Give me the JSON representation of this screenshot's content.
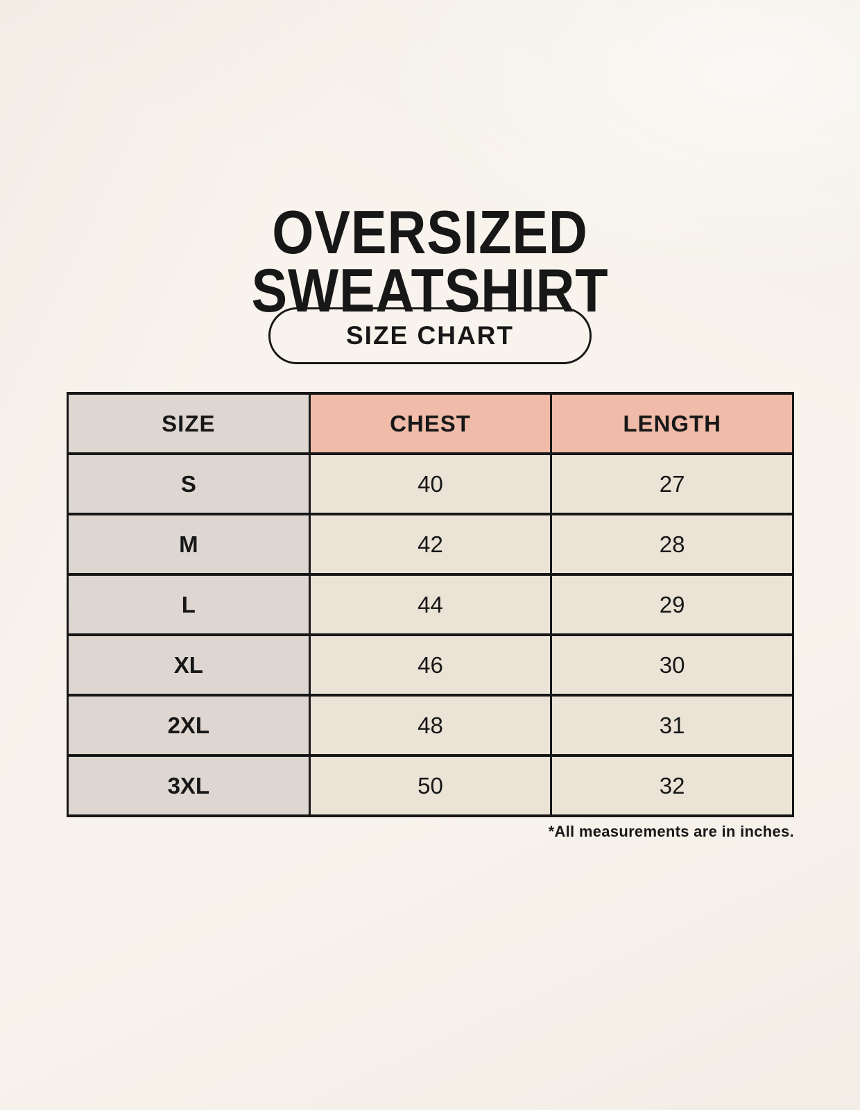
{
  "page": {
    "title_line1": "OVERSIZED",
    "title_line2": "SWEATSHIRT",
    "badge_label": "SIZE CHART",
    "footnote": "*All measurements are in inches."
  },
  "table": {
    "headers": [
      "SIZE",
      "CHEST",
      "LENGTH"
    ],
    "rows": [
      {
        "size": "S",
        "chest": "40",
        "length": "27"
      },
      {
        "size": "M",
        "chest": "42",
        "length": "28"
      },
      {
        "size": "L",
        "chest": "44",
        "length": "29"
      },
      {
        "size": "XL",
        "chest": "46",
        "length": "30"
      },
      {
        "size": "2XL",
        "chest": "48",
        "length": "31"
      },
      {
        "size": "3XL",
        "chest": "50",
        "length": "32"
      }
    ]
  },
  "colors": {
    "background": "#F8F4ED",
    "table_border": "#171717",
    "header_pink": "#F0BCA9",
    "column_gray": "#DED7D1",
    "cell_cream": "#EAE3D6",
    "text": "#171717"
  },
  "chart_data": {
    "type": "table",
    "title": "OVERSIZED SWEATSHIRT",
    "subtitle": "SIZE CHART",
    "columns": [
      "SIZE",
      "CHEST",
      "LENGTH"
    ],
    "rows": [
      [
        "S",
        40,
        27
      ],
      [
        "M",
        42,
        28
      ],
      [
        "L",
        44,
        29
      ],
      [
        "XL",
        46,
        30
      ],
      [
        "2XL",
        48,
        31
      ],
      [
        "3XL",
        50,
        32
      ]
    ],
    "units": "inches",
    "footnote": "*All measurements are in inches."
  }
}
